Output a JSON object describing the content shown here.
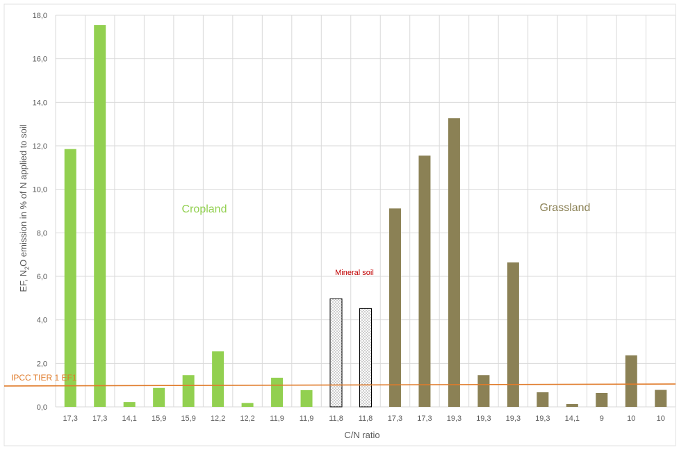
{
  "chart_data": {
    "type": "bar",
    "xlabel": "C/N ratio",
    "ylabel_parts": [
      "EF, N",
      "2",
      "O emission in % of N applied to soil"
    ],
    "ylim": [
      0,
      18
    ],
    "yticks": [
      "0,0",
      "2,0",
      "4,0",
      "6,0",
      "8,0",
      "10,0",
      "12,0",
      "14,0",
      "16,0",
      "18,0"
    ],
    "grid": true,
    "categories": [
      "17,3",
      "17,3",
      "14,1",
      "15,9",
      "15,9",
      "12,2",
      "12,2",
      "11,9",
      "11,9",
      "11,8",
      "11,8",
      "17,3",
      "17,3",
      "19,3",
      "19,3",
      "19,3",
      "19,3",
      "14,1",
      "9",
      "10",
      "10"
    ],
    "values": [
      11.85,
      17.55,
      0.22,
      0.87,
      1.46,
      2.55,
      0.18,
      1.34,
      0.77,
      4.97,
      4.52,
      9.12,
      11.55,
      13.27,
      1.46,
      6.64,
      0.67,
      0.13,
      0.64,
      2.37,
      0.78
    ],
    "groups": [
      {
        "name": "Cropland",
        "start": 0,
        "end": 8,
        "color": "#92d050"
      },
      {
        "name": "Mineral soil",
        "start": 9,
        "end": 10,
        "color": "#ffffff"
      },
      {
        "name": "Grassland",
        "start": 11,
        "end": 20,
        "color": "#8b8155"
      }
    ],
    "reference_line": {
      "label": "IPCC TIER 1 EF1",
      "y_start": 0.96,
      "y_end": 1.05,
      "color": "#e07b2a"
    },
    "annotations": {
      "cropland": "Cropland",
      "grassland": "Grassland",
      "mineral": "Mineral soil"
    },
    "colors": {
      "cropland_label": "#92d050",
      "grassland_label": "#8b8155",
      "mineral_label": "#c00000",
      "grid": "#d9d9d9",
      "axis_text": "#595959"
    }
  }
}
